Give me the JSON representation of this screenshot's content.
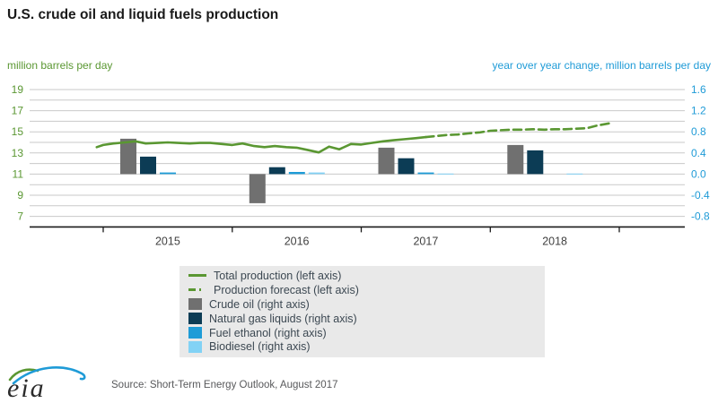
{
  "title": "U.S. crude oil and liquid fuels production",
  "axes_units": {
    "left": "million barrels per day",
    "right": "year over year change, million barrels per day"
  },
  "legend": {
    "items": [
      {
        "label": "Total production (left axis)",
        "type": "line",
        "style": "solid",
        "color": "#5a9732"
      },
      {
        "label": "Production forecast (left axis)",
        "type": "line",
        "style": "dashed",
        "color": "#5a9732"
      },
      {
        "label": "Crude oil (right axis)",
        "type": "square",
        "color": "#707070"
      },
      {
        "label": "Natural gas liquids (right axis)",
        "type": "square",
        "color": "#0c3c55"
      },
      {
        "label": "Fuel ethanol (right axis)",
        "type": "square",
        "color": "#1e9cd7"
      },
      {
        "label": "Biodiesel (right axis)",
        "type": "square",
        "color": "#82d2f5"
      }
    ]
  },
  "footer": {
    "source": "Source: Short-Term Energy Outlook, August 2017",
    "logo_text": "eia"
  },
  "colors": {
    "title": "#1a1a1a",
    "grid": "#c9c9c9",
    "axis_line": "#1a1a1a",
    "x_labels": "#404040",
    "left_axis": "#5a9732",
    "right_axis": "#1f9bd7",
    "legend_bg": "#e9e9e9",
    "source_text": "#58595b"
  },
  "chart_data": {
    "type": "line+bar combo",
    "title": "U.S. crude oil and liquid fuels production",
    "left_axis": {
      "label": "million barrels per day",
      "tick_labels": [
        "19",
        "17",
        "15",
        "13",
        "11",
        "9",
        "7"
      ],
      "range": [
        6,
        19
      ],
      "grid_step": 1,
      "color": "#5a9732"
    },
    "right_axis": {
      "label": "year over year change, million barrels per day",
      "tick_labels": [
        "1.6",
        "1.2",
        "0.8",
        "0.4",
        "0.0",
        "-0.4",
        "-0.8"
      ],
      "range": [
        -1.0,
        1.6
      ],
      "grid_step": 0.2,
      "color": "#1f9bd7"
    },
    "x_axis": {
      "year_labels": [
        "2015",
        "2016",
        "2017",
        "2018"
      ],
      "tick_years": [
        2015,
        2016,
        2017,
        2018,
        2019
      ],
      "categories": [
        2015,
        2016,
        2017,
        2018
      ]
    },
    "grid": true,
    "legend_position": "below",
    "series": [
      {
        "name": "Total production (left axis)",
        "type": "line",
        "axis": "left",
        "style": "solid",
        "color": "#5a9732",
        "points": [
          [
            2014.95,
            13.55
          ],
          [
            2015.0,
            13.75
          ],
          [
            2015.08,
            13.9
          ],
          [
            2015.17,
            14.0
          ],
          [
            2015.25,
            14.1
          ],
          [
            2015.33,
            13.9
          ],
          [
            2015.42,
            13.95
          ],
          [
            2015.5,
            14.0
          ],
          [
            2015.58,
            13.95
          ],
          [
            2015.67,
            13.9
          ],
          [
            2015.75,
            13.95
          ],
          [
            2015.83,
            13.95
          ],
          [
            2015.92,
            13.85
          ],
          [
            2016.0,
            13.75
          ],
          [
            2016.08,
            13.9
          ],
          [
            2016.17,
            13.65
          ],
          [
            2016.25,
            13.55
          ],
          [
            2016.33,
            13.65
          ],
          [
            2016.42,
            13.55
          ],
          [
            2016.5,
            13.5
          ],
          [
            2016.58,
            13.3
          ],
          [
            2016.67,
            13.05
          ],
          [
            2016.75,
            13.6
          ],
          [
            2016.83,
            13.35
          ],
          [
            2016.92,
            13.85
          ],
          [
            2017.0,
            13.8
          ],
          [
            2017.08,
            13.95
          ],
          [
            2017.17,
            14.1
          ],
          [
            2017.25,
            14.2
          ],
          [
            2017.33,
            14.3
          ],
          [
            2017.42,
            14.4
          ],
          [
            2017.5,
            14.5
          ]
        ]
      },
      {
        "name": "Production forecast (left axis)",
        "type": "line",
        "axis": "left",
        "style": "dashed",
        "color": "#5a9732",
        "points": [
          [
            2017.5,
            14.5
          ],
          [
            2017.58,
            14.6
          ],
          [
            2017.67,
            14.7
          ],
          [
            2017.75,
            14.75
          ],
          [
            2017.83,
            14.85
          ],
          [
            2017.92,
            14.95
          ],
          [
            2018.0,
            15.1
          ],
          [
            2018.08,
            15.15
          ],
          [
            2018.17,
            15.2
          ],
          [
            2018.25,
            15.2
          ],
          [
            2018.33,
            15.25
          ],
          [
            2018.42,
            15.2
          ],
          [
            2018.5,
            15.25
          ],
          [
            2018.58,
            15.25
          ],
          [
            2018.67,
            15.3
          ],
          [
            2018.75,
            15.35
          ],
          [
            2018.83,
            15.6
          ],
          [
            2018.92,
            15.8
          ]
        ]
      },
      {
        "name": "Crude oil (right axis)",
        "type": "bar",
        "axis": "right",
        "color": "#707070",
        "values": [
          0.67,
          -0.55,
          0.5,
          0.55
        ]
      },
      {
        "name": "Natural gas liquids (right axis)",
        "type": "bar",
        "axis": "right",
        "color": "#0c3c55",
        "values": [
          0.33,
          0.13,
          0.3,
          0.45
        ]
      },
      {
        "name": "Fuel ethanol (right axis)",
        "type": "bar",
        "axis": "right",
        "color": "#1e9cd7",
        "values": [
          0.03,
          0.04,
          0.03,
          0
        ]
      },
      {
        "name": "Biodiesel (right axis)",
        "type": "bar",
        "axis": "right",
        "color": "#82d2f5",
        "values": [
          0,
          0.03,
          0.01,
          0.01
        ]
      }
    ]
  }
}
